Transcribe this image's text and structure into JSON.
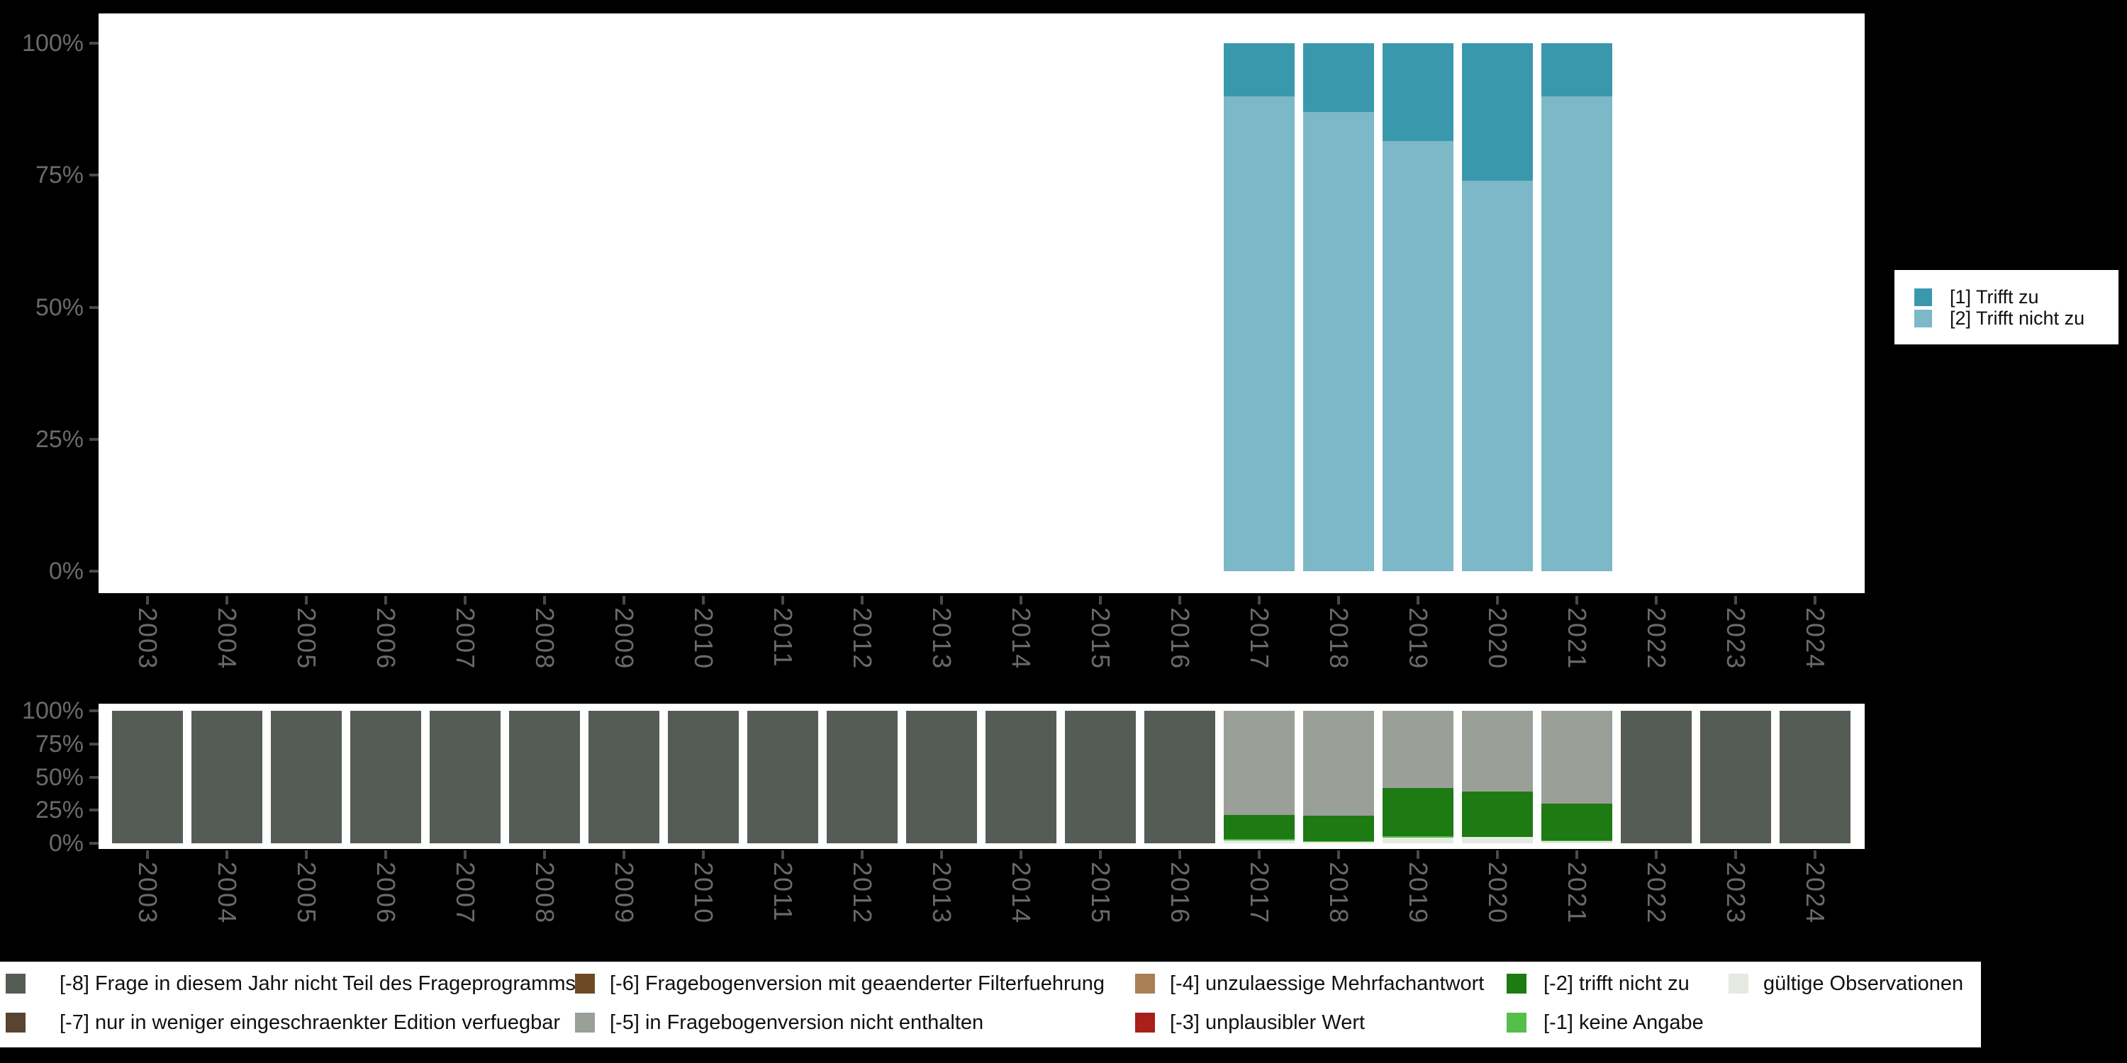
{
  "top_chart": {
    "legend": [
      {
        "label": "[1] Trifft zu",
        "color": "#3a98ad"
      },
      {
        "label": "[2] Trifft nicht zu",
        "color": "#7cb8c7"
      }
    ]
  },
  "missing_legend": [
    {
      "label": "[-8] Frage in diesem Jahr nicht Teil des Frageprogramms",
      "color": "#555c55"
    },
    {
      "label": "[-7] nur in weniger eingeschraenkter Edition verfuegbar",
      "color": "#594331"
    },
    {
      "label": "[-6] Fragebogenversion mit geaenderter Filterfuehrung",
      "color": "#6e4a24"
    },
    {
      "label": "[-5] in Fragebogenversion nicht enthalten",
      "color": "#9a9f98"
    },
    {
      "label": "[-4] unzulaessige Mehrfachantwort",
      "color": "#a97f55"
    },
    {
      "label": "[-3] unplausibler Wert",
      "color": "#a8201a"
    },
    {
      "label": "[-2] trifft nicht zu",
      "color": "#1e7a13"
    },
    {
      "label": "[-1] keine Angabe",
      "color": "#56be4a"
    },
    {
      "label": "gültige Observationen",
      "color": "#e4e9e2"
    }
  ],
  "chart_data": [
    {
      "type": "bar",
      "stacked": true,
      "unit": "percent",
      "ylim": [
        0,
        100
      ],
      "grid": false,
      "legend_position": "right",
      "y_tick_labels": [
        "100%",
        "75%",
        "50%",
        "25%",
        "0%"
      ],
      "categories": [
        "2003",
        "2004",
        "2005",
        "2006",
        "2007",
        "2008",
        "2009",
        "2010",
        "2011",
        "2012",
        "2013",
        "2014",
        "2015",
        "2016",
        "2017",
        "2018",
        "2019",
        "2020",
        "2021",
        "2022",
        "2023",
        "2024"
      ],
      "stack_order": "bottom_to_top",
      "series": [
        {
          "name": "[2] Trifft nicht zu",
          "color": "#7cb8c7",
          "values": [
            0,
            0,
            0,
            0,
            0,
            0,
            0,
            0,
            0,
            0,
            0,
            0,
            0,
            0,
            90,
            87,
            81.5,
            74,
            90,
            0,
            0,
            0
          ]
        },
        {
          "name": "[1] Trifft zu",
          "color": "#3a98ad",
          "values": [
            0,
            0,
            0,
            0,
            0,
            0,
            0,
            0,
            0,
            0,
            0,
            0,
            0,
            0,
            10,
            13,
            18.5,
            26,
            10,
            0,
            0,
            0
          ]
        }
      ]
    },
    {
      "type": "bar",
      "stacked": true,
      "unit": "percent",
      "ylim": [
        0,
        100
      ],
      "grid": false,
      "legend_position": "bottom",
      "y_tick_labels": [
        "100%",
        "75%",
        "50%",
        "25%",
        "0%"
      ],
      "categories": [
        "2003",
        "2004",
        "2005",
        "2006",
        "2007",
        "2008",
        "2009",
        "2010",
        "2011",
        "2012",
        "2013",
        "2014",
        "2015",
        "2016",
        "2017",
        "2018",
        "2019",
        "2020",
        "2021",
        "2022",
        "2023",
        "2024"
      ],
      "stack_order": "bottom_to_top",
      "series": [
        {
          "name": "gültige Observationen",
          "color": "#e4e9e2",
          "values": [
            0,
            0,
            0,
            0,
            0,
            0,
            0,
            0,
            0,
            0,
            0,
            0,
            0,
            0,
            2,
            1,
            4.5,
            5,
            1.5,
            0,
            0,
            0
          ]
        },
        {
          "name": "[-1] keine Angabe",
          "color": "#56be4a",
          "values": [
            0,
            0,
            0,
            0,
            0,
            0,
            0,
            0,
            0,
            0,
            0,
            0,
            0,
            0,
            1,
            0.5,
            1,
            0,
            0.5,
            0,
            0,
            0
          ]
        },
        {
          "name": "[-2] trifft nicht zu",
          "color": "#1e7a13",
          "values": [
            0,
            0,
            0,
            0,
            0,
            0,
            0,
            0,
            0,
            0,
            0,
            0,
            0,
            0,
            18.5,
            19.5,
            36,
            34,
            28,
            0,
            0,
            0
          ]
        },
        {
          "name": "[-5] in Fragebogenversion nicht enthalten",
          "color": "#9a9f98",
          "values": [
            0,
            0,
            0,
            0,
            0,
            0,
            0,
            0,
            0,
            0,
            0,
            0,
            0,
            0,
            78.5,
            79,
            58.5,
            61,
            70,
            0,
            0,
            0
          ]
        },
        {
          "name": "[-8] Frage in diesem Jahr nicht Teil des Frageprogramms",
          "color": "#555c55",
          "values": [
            100,
            100,
            100,
            100,
            100,
            100,
            100,
            100,
            100,
            100,
            100,
            100,
            100,
            100,
            0,
            0,
            0,
            0,
            0,
            100,
            100,
            100
          ]
        }
      ]
    }
  ]
}
